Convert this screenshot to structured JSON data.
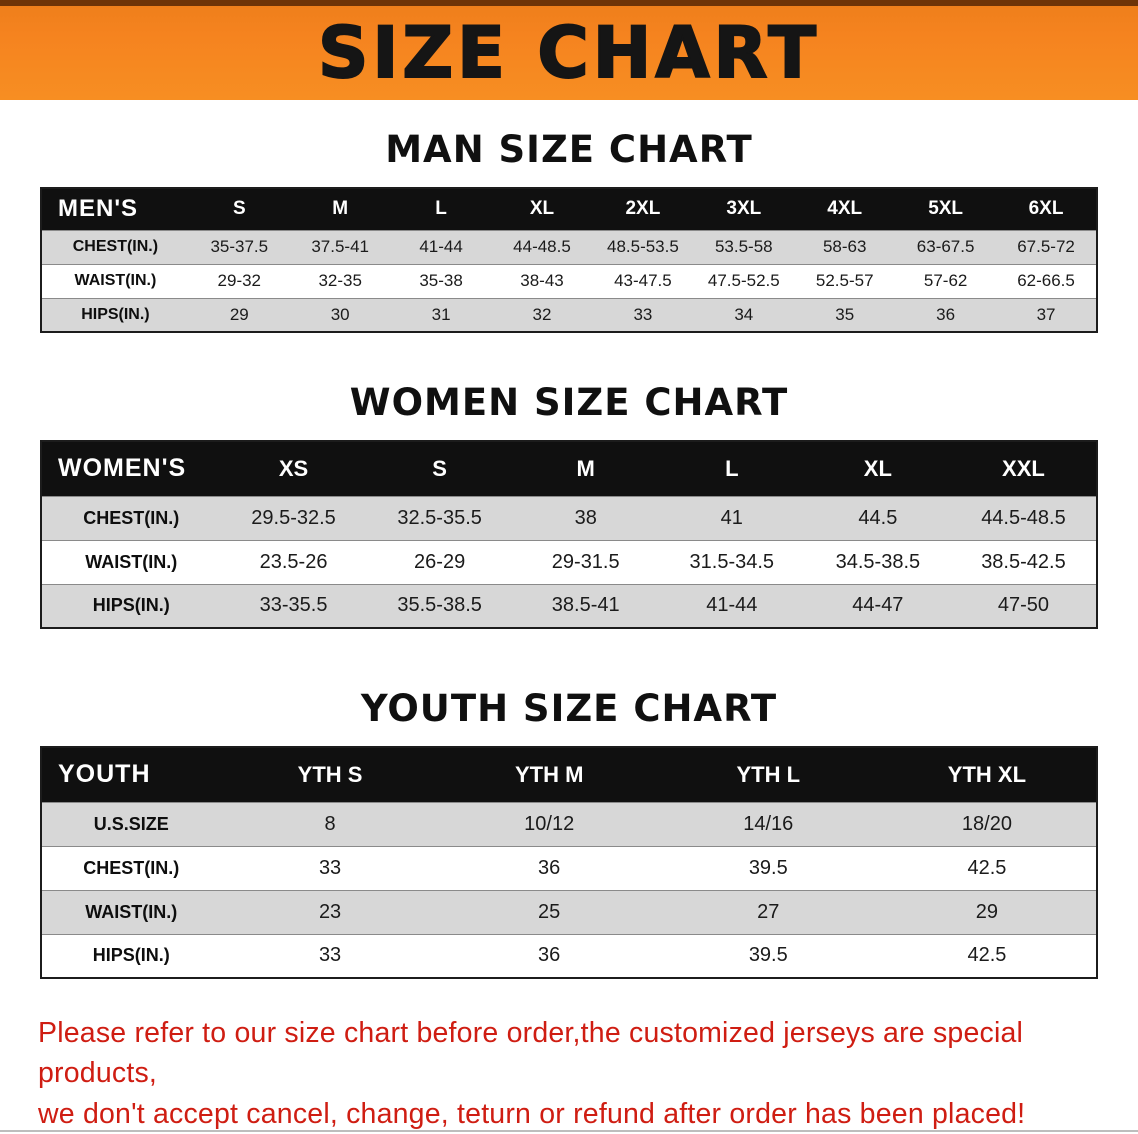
{
  "banner": {
    "title": "SIZE CHART"
  },
  "sections": [
    {
      "id": "men",
      "heading": "MAN SIZE CHART",
      "table": {
        "header": [
          "MEN'S",
          "S",
          "M",
          "L",
          "XL",
          "2XL",
          "3XL",
          "4XL",
          "5XL",
          "6XL"
        ],
        "rows": [
          [
            "CHEST(IN.)",
            "35-37.5",
            "37.5-41",
            "41-44",
            "44-48.5",
            "48.5-53.5",
            "53.5-58",
            "58-63",
            "63-67.5",
            "67.5-72"
          ],
          [
            "WAIST(IN.)",
            "29-32",
            "32-35",
            "35-38",
            "38-43",
            "43-47.5",
            "47.5-52.5",
            "52.5-57",
            "57-62",
            "62-66.5"
          ],
          [
            "HIPS(IN.)",
            "29",
            "30",
            "31",
            "32",
            "33",
            "34",
            "35",
            "36",
            "37"
          ]
        ]
      }
    },
    {
      "id": "women",
      "heading": "WOMEN SIZE CHART",
      "table": {
        "header": [
          "WOMEN'S",
          "XS",
          "S",
          "M",
          "L",
          "XL",
          "XXL"
        ],
        "rows": [
          [
            "CHEST(IN.)",
            "29.5-32.5",
            "32.5-35.5",
            "38",
            "41",
            "44.5",
            "44.5-48.5"
          ],
          [
            "WAIST(IN.)",
            "23.5-26",
            "26-29",
            "29-31.5",
            "31.5-34.5",
            "34.5-38.5",
            "38.5-42.5"
          ],
          [
            "HIPS(IN.)",
            "33-35.5",
            "35.5-38.5",
            "38.5-41",
            "41-44",
            "44-47",
            "47-50"
          ]
        ]
      }
    },
    {
      "id": "youth",
      "heading": "YOUTH SIZE CHART",
      "table": {
        "header": [
          "YOUTH",
          "YTH S",
          "YTH M",
          "YTH L",
          "YTH XL"
        ],
        "rows": [
          [
            "U.S.SIZE",
            "8",
            "10/12",
            "14/16",
            "18/20"
          ],
          [
            "CHEST(IN.)",
            "33",
            "36",
            "39.5",
            "42.5"
          ],
          [
            "WAIST(IN.)",
            "23",
            "25",
            "27",
            "29"
          ],
          [
            "HIPS(IN.)",
            "33",
            "36",
            "39.5",
            "42.5"
          ]
        ]
      }
    }
  ],
  "footer": {
    "lines": [
      "Please refer to our size chart before order,the customized jerseys are special products,",
      "we don't accept cancel, change, teturn or refund after order has been placed!"
    ]
  },
  "colors": {
    "banner_bg": "#f5831f",
    "header_bg": "#101010",
    "alt_row_bg": "#d7d7d7",
    "footer_red": "#cf1d12"
  }
}
